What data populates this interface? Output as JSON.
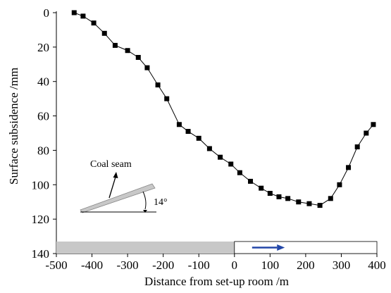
{
  "chart_data": {
    "type": "line",
    "xlabel": "Distance from set-up room /m",
    "ylabel": "Surface subsidence /mm",
    "xlim": [
      -500,
      400
    ],
    "ylim": [
      0,
      140
    ],
    "y_inverted": true,
    "xticks": [
      -500,
      -400,
      -300,
      -200,
      -100,
      0,
      100,
      200,
      300,
      400
    ],
    "yticks": [
      0,
      20,
      40,
      60,
      80,
      100,
      120,
      140
    ],
    "marker": "square",
    "series": [
      {
        "x": [
          -450,
          -425,
          -395,
          -365,
          -335,
          -300,
          -270,
          -245,
          -215,
          -190,
          -155,
          -130,
          -100,
          -70,
          -40,
          -10,
          15,
          45,
          75,
          100,
          125,
          150,
          180,
          210,
          240,
          270,
          295,
          320,
          345,
          370,
          390
        ],
        "y": [
          0,
          2,
          6,
          12,
          19,
          22,
          26,
          32,
          42,
          50,
          65,
          69,
          73,
          79,
          84,
          88,
          93,
          98,
          102,
          105,
          107,
          108,
          110,
          111,
          112,
          108,
          100,
          90,
          78,
          70,
          65
        ]
      }
    ],
    "bottom_bar": {
      "gray_span": [
        -500,
        0
      ],
      "white_span": [
        0,
        400
      ],
      "arrow_span": [
        10,
        80
      ],
      "arrow_color": "#2347a8",
      "gray_color": "#c8c8c8"
    },
    "annotation": {
      "label": "Coal seam",
      "angle_label": "14°"
    }
  }
}
